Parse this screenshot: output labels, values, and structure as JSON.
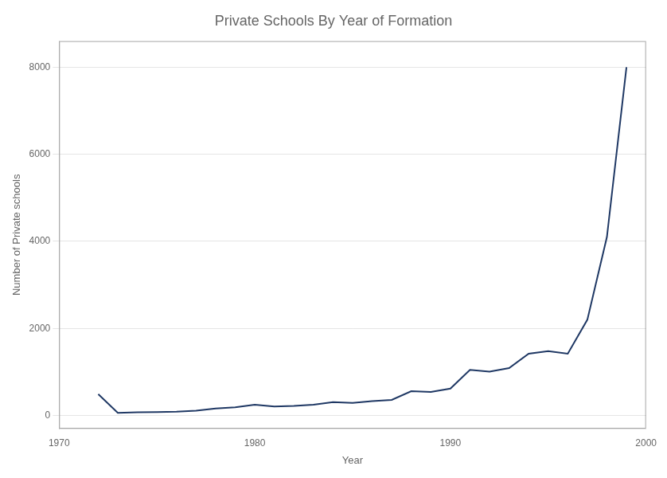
{
  "chart_data": {
    "type": "line",
    "title": "Private Schools By Year of Formation",
    "xlabel": "Year",
    "ylabel": "Number of Private schools",
    "x": [
      1972,
      1973,
      1974,
      1975,
      1976,
      1977,
      1978,
      1979,
      1980,
      1981,
      1982,
      1983,
      1984,
      1985,
      1986,
      1987,
      1988,
      1989,
      1990,
      1991,
      1992,
      1993,
      1994,
      1995,
      1996,
      1997,
      1998,
      1999
    ],
    "values": [
      490,
      60,
      75,
      80,
      90,
      110,
      160,
      190,
      250,
      210,
      220,
      250,
      310,
      290,
      330,
      360,
      560,
      540,
      620,
      1050,
      1010,
      1090,
      1420,
      1480,
      1420,
      2200,
      4100,
      8000
    ],
    "color": "#1f3864",
    "xlim": [
      1970,
      2000
    ],
    "xticks": [
      1970,
      1980,
      1990,
      2000
    ],
    "ylim": [
      -300,
      8600
    ],
    "yticks": [
      0,
      2000,
      4000,
      6000,
      8000
    ],
    "grid": "y"
  }
}
